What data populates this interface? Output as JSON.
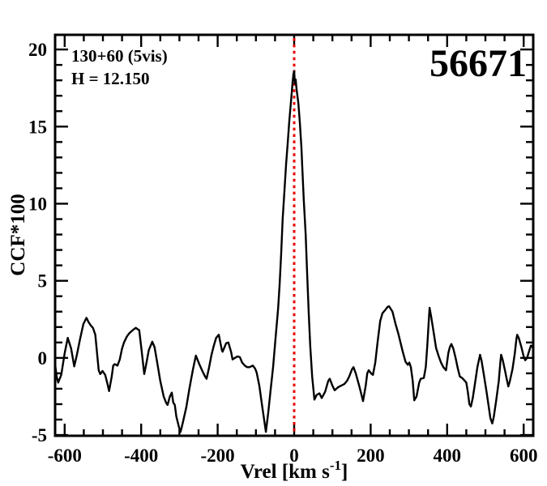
{
  "figure": {
    "background_color": "#ffffff",
    "axis_color": "#000000",
    "curve_color": "#000000",
    "marker_line_color": "#e80000"
  },
  "chart_data": {
    "type": "line",
    "title": "56671",
    "annotations": [
      "130+60 (5vis)",
      "H = 12.150"
    ],
    "xlabel": "Vrel [km s-1]",
    "xlabel_parts": {
      "pre": "Vrel [km s",
      "sup": "-1",
      "post": "]"
    },
    "ylabel": "CCF*100",
    "xlim": [
      -625,
      625
    ],
    "ylim": [
      -5.05,
      20.95
    ],
    "grid": false,
    "legend": null,
    "x_major_ticks": [
      -600,
      -400,
      -200,
      0,
      200,
      400,
      600
    ],
    "x_tick_labels": [
      "-600",
      "-400",
      "-200",
      "0",
      "200",
      "400",
      "600"
    ],
    "x_minor_step": 50,
    "y_major_ticks": [
      20,
      15,
      10,
      5,
      0,
      -5
    ],
    "y_tick_labels": [
      "20",
      "15",
      "10",
      "5",
      "0",
      "-5"
    ],
    "y_minor_step": 1,
    "marker_line": {
      "x": 0,
      "color": "#e80000",
      "style": "dotted"
    },
    "series": [
      {
        "name": "ccf_curve",
        "color": "#000000",
        "points": [
          [
            -625,
            -0.4
          ],
          [
            -621,
            -1.2
          ],
          [
            -617,
            -1.6
          ],
          [
            -609,
            -1.1
          ],
          [
            -600,
            0.3
          ],
          [
            -592,
            1.3
          ],
          [
            -583,
            0.6
          ],
          [
            -575,
            -0.55
          ],
          [
            -568,
            0.2
          ],
          [
            -560,
            1.2
          ],
          [
            -551,
            2.2
          ],
          [
            -543,
            2.6
          ],
          [
            -537,
            2.3
          ],
          [
            -530,
            2.05
          ],
          [
            -526,
            1.95
          ],
          [
            -520,
            1.5
          ],
          [
            -511,
            -0.8
          ],
          [
            -507,
            -1.05
          ],
          [
            -501,
            -0.85
          ],
          [
            -494,
            -1.1
          ],
          [
            -488,
            -1.7
          ],
          [
            -484,
            -2.15
          ],
          [
            -477,
            -1.2
          ],
          [
            -473,
            -0.5
          ],
          [
            -469,
            -0.4
          ],
          [
            -462,
            -0.5
          ],
          [
            -456,
            -0.1
          ],
          [
            -450,
            0.6
          ],
          [
            -445,
            1.0
          ],
          [
            -437,
            1.4
          ],
          [
            -431,
            1.6
          ],
          [
            -422,
            1.8
          ],
          [
            -414,
            1.95
          ],
          [
            -409,
            1.85
          ],
          [
            -405,
            1.8
          ],
          [
            -399,
            0.5
          ],
          [
            -392,
            -1.05
          ],
          [
            -386,
            -0.3
          ],
          [
            -380,
            0.5
          ],
          [
            -371,
            1.05
          ],
          [
            -365,
            0.7
          ],
          [
            -358,
            -0.3
          ],
          [
            -350,
            -1.5
          ],
          [
            -341,
            -2.5
          ],
          [
            -335,
            -2.9
          ],
          [
            -331,
            -3.05
          ],
          [
            -325,
            -2.5
          ],
          [
            -320,
            -2.25
          ],
          [
            -316,
            -2.9
          ],
          [
            -312,
            -3.05
          ],
          [
            -308,
            -3.8
          ],
          [
            -301,
            -4.5
          ],
          [
            -297,
            -4.8
          ],
          [
            -291,
            -4.2
          ],
          [
            -282,
            -3.2
          ],
          [
            -274,
            -2.0
          ],
          [
            -265,
            -0.8
          ],
          [
            -257,
            0.15
          ],
          [
            -248,
            -0.4
          ],
          [
            -240,
            -0.85
          ],
          [
            -233,
            -1.2
          ],
          [
            -229,
            -1.35
          ],
          [
            -223,
            -0.7
          ],
          [
            -216,
            0.2
          ],
          [
            -210,
            0.8
          ],
          [
            -204,
            1.3
          ],
          [
            -197,
            1.5
          ],
          [
            -193,
            1.0
          ],
          [
            -189,
            0.5
          ],
          [
            -187,
            0.4
          ],
          [
            -182,
            0.7
          ],
          [
            -178,
            0.95
          ],
          [
            -172,
            1.0
          ],
          [
            -165,
            0.4
          ],
          [
            -161,
            -0.1
          ],
          [
            -155,
            0.0
          ],
          [
            -148,
            0.1
          ],
          [
            -142,
            0.05
          ],
          [
            -136,
            -0.3
          ],
          [
            -129,
            -0.5
          ],
          [
            -123,
            -0.6
          ],
          [
            -117,
            -0.6
          ],
          [
            -108,
            -0.5
          ],
          [
            -102,
            -0.7
          ],
          [
            -98,
            -0.95
          ],
          [
            -91,
            -1.8
          ],
          [
            -85,
            -2.9
          ],
          [
            -78,
            -4.1
          ],
          [
            -74,
            -4.8
          ],
          [
            -68,
            -3.6
          ],
          [
            -62,
            -2.2
          ],
          [
            -55,
            -0.6
          ],
          [
            -49,
            1.2
          ],
          [
            -42,
            3.2
          ],
          [
            -38,
            4.8
          ],
          [
            -34,
            6.8
          ],
          [
            -30,
            9.0
          ],
          [
            -25,
            11.0
          ],
          [
            -21,
            12.6
          ],
          [
            -17,
            13.9
          ],
          [
            -13,
            15.3
          ],
          [
            -8,
            16.7
          ],
          [
            -4,
            17.9
          ],
          [
            -2,
            18.4
          ],
          [
            0,
            18.6
          ],
          [
            2,
            17.8
          ],
          [
            4,
            18.05
          ],
          [
            6,
            17.5
          ],
          [
            11,
            16.5
          ],
          [
            15,
            15.2
          ],
          [
            19,
            13.6
          ],
          [
            21,
            12.5
          ],
          [
            25,
            10.3
          ],
          [
            30,
            8.0
          ],
          [
            34,
            5.5
          ],
          [
            38,
            3.0
          ],
          [
            42,
            0.8
          ],
          [
            47,
            -1.2
          ],
          [
            53,
            -2.7
          ],
          [
            59,
            -2.4
          ],
          [
            66,
            -2.3
          ],
          [
            72,
            -2.6
          ],
          [
            81,
            -2.2
          ],
          [
            89,
            -1.5
          ],
          [
            93,
            -1.35
          ],
          [
            100,
            -1.8
          ],
          [
            106,
            -2.1
          ],
          [
            115,
            -1.9
          ],
          [
            123,
            -1.8
          ],
          [
            131,
            -1.7
          ],
          [
            138,
            -1.5
          ],
          [
            144,
            -1.2
          ],
          [
            151,
            -0.75
          ],
          [
            155,
            -0.6
          ],
          [
            161,
            -1.0
          ],
          [
            170,
            -1.8
          ],
          [
            176,
            -2.4
          ],
          [
            180,
            -2.8
          ],
          [
            187,
            -1.8
          ],
          [
            191,
            -1.0
          ],
          [
            195,
            -0.8
          ],
          [
            201,
            -1.0
          ],
          [
            206,
            -1.1
          ],
          [
            212,
            -0.3
          ],
          [
            218,
            1.0
          ],
          [
            225,
            2.4
          ],
          [
            231,
            2.9
          ],
          [
            238,
            3.1
          ],
          [
            244,
            3.3
          ],
          [
            248,
            3.35
          ],
          [
            257,
            3.0
          ],
          [
            265,
            2.2
          ],
          [
            272,
            1.6
          ],
          [
            278,
            1.0
          ],
          [
            284,
            0.4
          ],
          [
            291,
            -0.25
          ],
          [
            297,
            -0.45
          ],
          [
            301,
            -0.3
          ],
          [
            305,
            -0.6
          ],
          [
            310,
            -1.5
          ],
          [
            314,
            -2.75
          ],
          [
            320,
            -2.5
          ],
          [
            327,
            -1.6
          ],
          [
            331,
            -1.35
          ],
          [
            339,
            -1.3
          ],
          [
            344,
            -0.6
          ],
          [
            348,
            0.8
          ],
          [
            352,
            2.4
          ],
          [
            354,
            3.25
          ],
          [
            358,
            2.7
          ],
          [
            365,
            1.6
          ],
          [
            371,
            0.65
          ],
          [
            378,
            0.1
          ],
          [
            384,
            -0.3
          ],
          [
            390,
            -0.6
          ],
          [
            397,
            -0.8
          ],
          [
            403,
            0.3
          ],
          [
            407,
            0.7
          ],
          [
            411,
            0.9
          ],
          [
            416,
            0.6
          ],
          [
            422,
            0.0
          ],
          [
            428,
            -0.7
          ],
          [
            433,
            -1.2
          ],
          [
            439,
            -1.3
          ],
          [
            445,
            -1.45
          ],
          [
            450,
            -1.6
          ],
          [
            454,
            -2.2
          ],
          [
            458,
            -3.0
          ],
          [
            462,
            -3.15
          ],
          [
            467,
            -2.6
          ],
          [
            473,
            -1.6
          ],
          [
            479,
            -0.6
          ],
          [
            486,
            0.2
          ],
          [
            490,
            -0.2
          ],
          [
            496,
            -1.1
          ],
          [
            503,
            -2.2
          ],
          [
            509,
            -3.2
          ],
          [
            513,
            -3.9
          ],
          [
            518,
            -4.25
          ],
          [
            522,
            -3.8
          ],
          [
            528,
            -2.8
          ],
          [
            535,
            -1.5
          ],
          [
            539,
            -0.3
          ],
          [
            541,
            0.2
          ],
          [
            545,
            -0.1
          ],
          [
            551,
            -0.8
          ],
          [
            556,
            -1.4
          ],
          [
            560,
            -1.85
          ],
          [
            564,
            -1.5
          ],
          [
            571,
            -0.7
          ],
          [
            577,
            0.3
          ],
          [
            581,
            1.2
          ],
          [
            583,
            1.5
          ],
          [
            587,
            1.3
          ],
          [
            594,
            0.7
          ],
          [
            600,
            0.1
          ],
          [
            604,
            -0.15
          ],
          [
            609,
            0.0
          ],
          [
            615,
            0.5
          ],
          [
            619,
            0.8
          ],
          [
            625,
            0.65
          ]
        ]
      }
    ]
  }
}
